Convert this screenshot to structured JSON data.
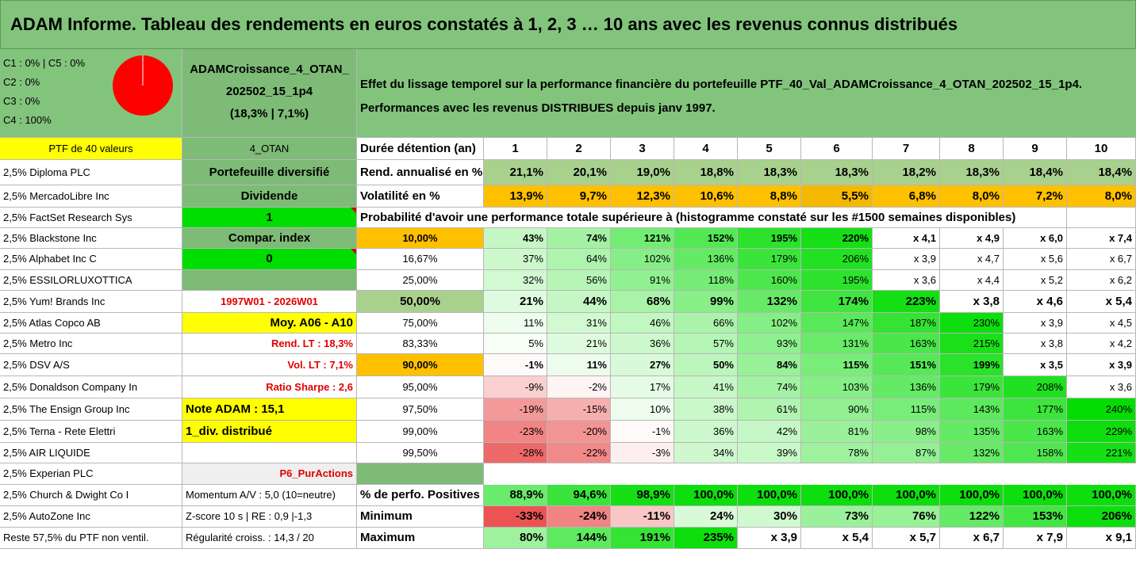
{
  "title": "ADAM Informe. Tableau des rendements en euros constatés à 1, 2, 3 … 10 ans avec les revenus connus distribués",
  "allocation": [
    "C1 : 0% | C5 : 0%",
    "C2 : 0%",
    "C3 : 0%",
    "C4 : 100%"
  ],
  "pie": {
    "fill": "#ff0000",
    "stroke": "#ffffff"
  },
  "ptf": {
    "line1": "ADAMCroissance_4_OTAN_",
    "line2": "202502_15_1p4",
    "line3": "(18,3% | 7,1%)"
  },
  "description": {
    "line1": "Effet du lissage temporel sur la performance financière du portefeuille PTF_40_Val_ADAMCroissance_4_OTAN_202502_15_1p4.",
    "line2": "Performances avec les revenus DISTRIBUES depuis janv 1997."
  },
  "holdings": [
    "PTF de 40 valeurs",
    "2,5% Diploma PLC",
    "2,5% MercadoLibre Inc",
    "2,5% FactSet Research Sys",
    "2,5% Blackstone Inc",
    "2,5% Alphabet Inc C",
    "2,5% ESSILORLUXOTTICA",
    "2,5% Yum! Brands Inc",
    "2,5% Atlas Copco AB",
    "2,5% Metro Inc",
    "2,5% DSV A/S",
    "2,5% Donaldson Company In",
    "2,5% The Ensign Group Inc",
    "2,5% Terna - Rete Elettri",
    "2,5% AIR LIQUIDE",
    "2,5% Experian PLC",
    "2,5% Church & Dwight Co I",
    "2,5% AutoZone Inc",
    "Reste 57,5% du PTF non ventil."
  ],
  "info": [
    "4_OTAN",
    "Portefeuille diversifié",
    "Dividende",
    "1",
    "Compar. index",
    "0",
    "",
    "1997W01 - 2026W01",
    "Moy. A06 - A10",
    "Rend. LT : 18,3%",
    "Vol. LT : 7,1%",
    "Ratio Sharpe : 2,6",
    "Note ADAM : 15,1",
    "1_div. distribué",
    "",
    "P6_PurActions",
    "Momentum A/V : 5,0 (10=neutre)",
    "Z-score 10 s | RE : 0,9 |-1,3",
    "Régularité croiss. : 14,3 / 20"
  ],
  "periods": {
    "label": "Durée détention (an)",
    "years": [
      "1",
      "2",
      "3",
      "4",
      "5",
      "6",
      "7",
      "8",
      "9",
      "10"
    ]
  },
  "rend": {
    "label": "Rend. annualisé en %",
    "values": [
      "21,1%",
      "20,1%",
      "19,0%",
      "18,8%",
      "18,3%",
      "18,3%",
      "18,2%",
      "18,3%",
      "18,4%",
      "18,4%"
    ]
  },
  "vol": {
    "label": "Volatilité en %",
    "values": [
      "13,9%",
      "9,7%",
      "12,3%",
      "10,6%",
      "8,8%",
      "5,5%",
      "6,8%",
      "8,0%",
      "7,2%",
      "8,0%"
    ]
  },
  "prob_title": "Probabilité d'avoir une performance totale supérieure à (histogramme constaté sur les #1500 semaines disponibles)",
  "prob": [
    {
      "p": "10,00%",
      "v": [
        "43%",
        "74%",
        "121%",
        "152%",
        "195%",
        "220%",
        "x 4,1",
        "x 4,9",
        "x 6,0",
        "x 7,4"
      ]
    },
    {
      "p": "16,67%",
      "v": [
        "37%",
        "64%",
        "102%",
        "136%",
        "179%",
        "206%",
        "x 3,9",
        "x 4,7",
        "x 5,6",
        "x 6,7"
      ]
    },
    {
      "p": "25,00%",
      "v": [
        "32%",
        "56%",
        "91%",
        "118%",
        "160%",
        "195%",
        "x 3,6",
        "x 4,4",
        "x 5,2",
        "x 6,2"
      ]
    },
    {
      "p": "50,00%",
      "v": [
        "21%",
        "44%",
        "68%",
        "99%",
        "132%",
        "174%",
        "223%",
        "x 3,8",
        "x 4,6",
        "x 5,4"
      ]
    },
    {
      "p": "75,00%",
      "v": [
        "11%",
        "31%",
        "46%",
        "66%",
        "102%",
        "147%",
        "187%",
        "230%",
        "x 3,9",
        "x 4,5"
      ]
    },
    {
      "p": "83,33%",
      "v": [
        "5%",
        "21%",
        "36%",
        "57%",
        "93%",
        "131%",
        "163%",
        "215%",
        "x 3,8",
        "x 4,2"
      ]
    },
    {
      "p": "90,00%",
      "v": [
        "-1%",
        "11%",
        "27%",
        "50%",
        "84%",
        "115%",
        "151%",
        "199%",
        "x 3,5",
        "x 3,9"
      ]
    },
    {
      "p": "95,00%",
      "v": [
        "-9%",
        "-2%",
        "17%",
        "41%",
        "74%",
        "103%",
        "136%",
        "179%",
        "208%",
        "x 3,6"
      ]
    },
    {
      "p": "97,50%",
      "v": [
        "-19%",
        "-15%",
        "10%",
        "38%",
        "61%",
        "90%",
        "115%",
        "143%",
        "177%",
        "240%"
      ]
    },
    {
      "p": "99,00%",
      "v": [
        "-23%",
        "-20%",
        "-1%",
        "36%",
        "42%",
        "81%",
        "98%",
        "135%",
        "163%",
        "229%"
      ]
    },
    {
      "p": "99,50%",
      "v": [
        "-28%",
        "-22%",
        "-3%",
        "34%",
        "39%",
        "78%",
        "87%",
        "132%",
        "158%",
        "221%"
      ]
    }
  ],
  "positives": {
    "label": "% de perfo. Positives",
    "values": [
      "88,9%",
      "94,6%",
      "98,9%",
      "100,0%",
      "100,0%",
      "100,0%",
      "100,0%",
      "100,0%",
      "100,0%",
      "100,0%"
    ]
  },
  "minimum": {
    "label": "Minimum",
    "values": [
      "-33%",
      "-24%",
      "-11%",
      "24%",
      "30%",
      "73%",
      "76%",
      "122%",
      "153%",
      "206%"
    ]
  },
  "maximum": {
    "label": "Maximum",
    "values": [
      "80%",
      "144%",
      "191%",
      "235%",
      "x 3,9",
      "x 5,4",
      "x 5,7",
      "x 6,7",
      "x 7,9",
      "x 9,1"
    ]
  }
}
